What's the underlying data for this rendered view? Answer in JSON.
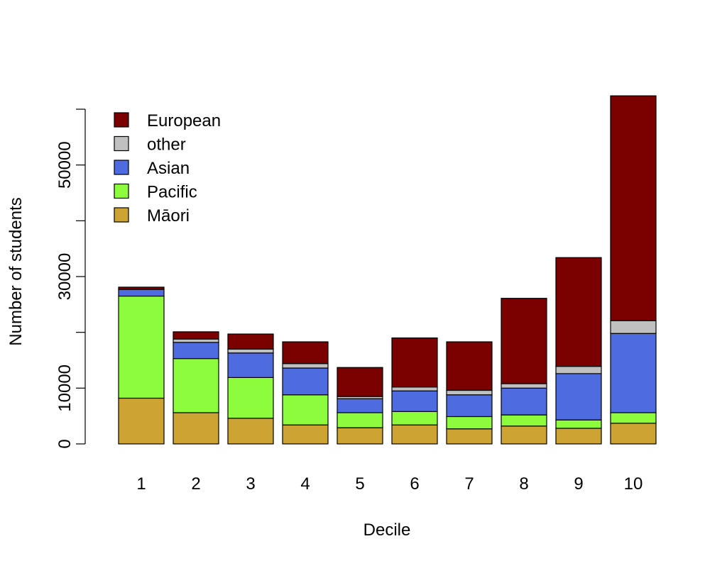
{
  "chart_data": {
    "type": "bar",
    "stacked": true,
    "title": "",
    "xlabel": "Decile",
    "ylabel": "Number of students",
    "categories": [
      "1",
      "2",
      "3",
      "4",
      "5",
      "6",
      "7",
      "8",
      "9",
      "10"
    ],
    "ylim": [
      0,
      62000
    ],
    "yticks": [
      0,
      10000,
      20000,
      30000,
      40000,
      50000,
      60000
    ],
    "ytick_labels": [
      "0",
      "10000",
      "",
      "30000",
      "",
      "50000",
      ""
    ],
    "series": [
      {
        "name": "Māori",
        "color": "#CDA434",
        "values": [
          8200,
          5600,
          4600,
          3400,
          2900,
          3400,
          2700,
          3200,
          2800,
          3700
        ]
      },
      {
        "name": "Pacific",
        "color": "#8CFC3C",
        "values": [
          18300,
          9700,
          7300,
          5400,
          2700,
          2400,
          2200,
          2000,
          1500,
          1900
        ]
      },
      {
        "name": "Asian",
        "color": "#4F6BE0",
        "values": [
          1200,
          2900,
          4400,
          4800,
          2500,
          3700,
          3900,
          4800,
          8300,
          14200
        ]
      },
      {
        "name": "other",
        "color": "#C0C0C0",
        "values": [
          0,
          600,
          700,
          800,
          400,
          700,
          800,
          800,
          1300,
          2300
        ]
      },
      {
        "name": "European",
        "color": "#7B0000",
        "values": [
          400,
          1300,
          2700,
          3900,
          5200,
          8800,
          8700,
          15300,
          19500,
          40300
        ]
      }
    ],
    "legend": {
      "position": "top-left",
      "order": [
        "European",
        "other",
        "Asian",
        "Pacific",
        "Māori"
      ]
    },
    "grid": false
  }
}
